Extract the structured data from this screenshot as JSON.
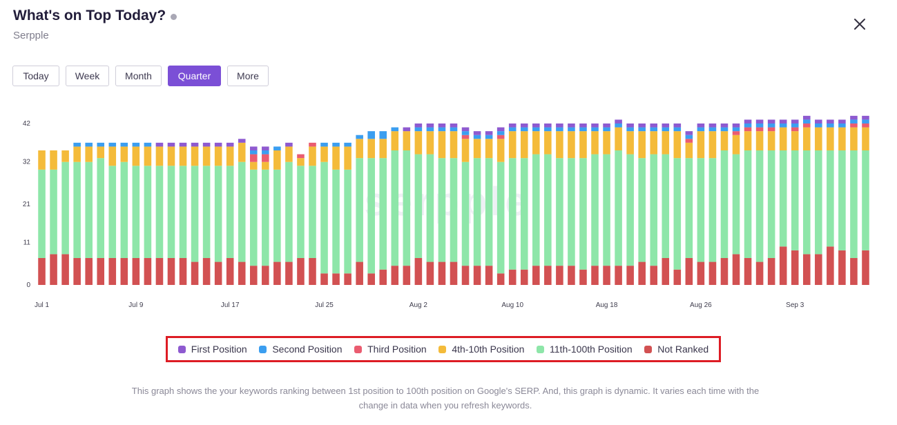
{
  "header": {
    "title": "What's on Top Today?",
    "subtitle": "Serpple"
  },
  "tabs": [
    {
      "label": "Today",
      "active": false
    },
    {
      "label": "Week",
      "active": false
    },
    {
      "label": "Month",
      "active": false
    },
    {
      "label": "Quarter",
      "active": true
    },
    {
      "label": "More",
      "active": false
    }
  ],
  "caption": "This graph shows the your keywords ranking between 1st position to 100th position on Google's SERP. And, this graph is dynamic. It varies each time with the change in data when you refresh keywords.",
  "colors": {
    "first": "#8e5ad0",
    "second": "#3b9ef0",
    "third": "#ea5c70",
    "top10": "#f4bb3a",
    "top100": "#8ee6a9",
    "not_ranked": "#d25152",
    "accent": "#7b4fd6",
    "legend_border": "#dd1c24"
  },
  "chart_data": {
    "type": "bar",
    "stacked": true,
    "watermark": "serpple",
    "ylim": [
      0,
      42
    ],
    "yticks": [
      0,
      11,
      21,
      32,
      42
    ],
    "xtick_labels": [
      {
        "index": 0,
        "label": "Jul 1"
      },
      {
        "index": 8,
        "label": "Jul 9"
      },
      {
        "index": 16,
        "label": "Jul 17"
      },
      {
        "index": 24,
        "label": "Jul 25"
      },
      {
        "index": 32,
        "label": "Aug 2"
      },
      {
        "index": 40,
        "label": "Aug 10"
      },
      {
        "index": 48,
        "label": "Aug 18"
      },
      {
        "index": 56,
        "label": "Aug 26"
      },
      {
        "index": 64,
        "label": "Sep 3"
      }
    ],
    "legend": [
      "First Position",
      "Second Position",
      "Third Position",
      "4th-10th Position",
      "11th-100th Position",
      "Not Ranked"
    ],
    "series": [
      {
        "name": "Not Ranked",
        "color_key": "not_ranked",
        "values": [
          7,
          8,
          8,
          7,
          7,
          7,
          7,
          7,
          7,
          7,
          7,
          7,
          7,
          6,
          7,
          6,
          7,
          6,
          5,
          5,
          6,
          6,
          7,
          7,
          3,
          3,
          3,
          6,
          3,
          4,
          5,
          5,
          7,
          6,
          6,
          6,
          5,
          5,
          5,
          3,
          4,
          4,
          5,
          5,
          5,
          5,
          4,
          5,
          5,
          5,
          5,
          6,
          5,
          7,
          4,
          7,
          6,
          6,
          7,
          8,
          7,
          6,
          7,
          10,
          9,
          8,
          8,
          10,
          9,
          7,
          9
        ]
      },
      {
        "name": "11th-100th Position",
        "color_key": "top100",
        "values": [
          23,
          22,
          24,
          25,
          25,
          26,
          24,
          25,
          24,
          24,
          24,
          24,
          24,
          25,
          24,
          25,
          24,
          26,
          25,
          25,
          24,
          26,
          24,
          24,
          29,
          27,
          27,
          27,
          30,
          29,
          30,
          30,
          27,
          28,
          27,
          27,
          27,
          28,
          28,
          29,
          29,
          29,
          29,
          29,
          28,
          28,
          29,
          29,
          29,
          30,
          29,
          27,
          29,
          27,
          29,
          26,
          27,
          27,
          28,
          26,
          28,
          29,
          28,
          25,
          26,
          27,
          27,
          25,
          26,
          28,
          26
        ]
      },
      {
        "name": "4th-10th Position",
        "color_key": "top10",
        "values": [
          5,
          5,
          3,
          4,
          4,
          3,
          5,
          4,
          5,
          5,
          5,
          5,
          5,
          5,
          5,
          5,
          5,
          5,
          2,
          2,
          5,
          4,
          2,
          5,
          4,
          6,
          6,
          5,
          5,
          5,
          5,
          5,
          6,
          6,
          7,
          7,
          6,
          5,
          5,
          6,
          7,
          7,
          6,
          6,
          7,
          7,
          7,
          6,
          6,
          6,
          6,
          7,
          6,
          6,
          7,
          4,
          7,
          7,
          5,
          5,
          5,
          5,
          5,
          6,
          5,
          6,
          6,
          6,
          6,
          6,
          6
        ]
      },
      {
        "name": "Third Position",
        "color_key": "third",
        "values": [
          0,
          0,
          0,
          0,
          0,
          0,
          0,
          0,
          0,
          0,
          0,
          0,
          0,
          0,
          0,
          0,
          0,
          0,
          2,
          2,
          0,
          0,
          1,
          1,
          0,
          0,
          0,
          0,
          0,
          0,
          0,
          0,
          0,
          0,
          0,
          0,
          1,
          0,
          0,
          1,
          0,
          0,
          0,
          0,
          0,
          0,
          0,
          0,
          0,
          0,
          0,
          0,
          0,
          0,
          0,
          1,
          0,
          0,
          0,
          1,
          1,
          1,
          1,
          0,
          1,
          1,
          0,
          0,
          0,
          1,
          1
        ]
      },
      {
        "name": "Second Position",
        "color_key": "second",
        "values": [
          0,
          0,
          0,
          1,
          1,
          1,
          1,
          1,
          1,
          1,
          0,
          0,
          0,
          0,
          0,
          0,
          0,
          0,
          1,
          1,
          1,
          0,
          0,
          0,
          1,
          1,
          1,
          1,
          2,
          2,
          1,
          0,
          1,
          1,
          1,
          1,
          1,
          1,
          1,
          1,
          1,
          1,
          1,
          1,
          1,
          1,
          1,
          1,
          1,
          1,
          1,
          1,
          1,
          1,
          1,
          1,
          1,
          1,
          1,
          1,
          1,
          1,
          1,
          1,
          1,
          1,
          1,
          1,
          1,
          1,
          1
        ]
      },
      {
        "name": "First Position",
        "color_key": "first",
        "values": [
          0,
          0,
          0,
          0,
          0,
          0,
          0,
          0,
          0,
          0,
          1,
          1,
          1,
          1,
          1,
          1,
          1,
          1,
          1,
          1,
          0,
          1,
          0,
          0,
          0,
          0,
          0,
          0,
          0,
          0,
          0,
          1,
          1,
          1,
          1,
          1,
          1,
          1,
          1,
          1,
          1,
          1,
          1,
          1,
          1,
          1,
          1,
          1,
          1,
          1,
          1,
          1,
          1,
          1,
          1,
          1,
          1,
          1,
          1,
          1,
          1,
          1,
          1,
          1,
          1,
          1,
          1,
          1,
          1,
          1,
          1
        ]
      }
    ]
  }
}
